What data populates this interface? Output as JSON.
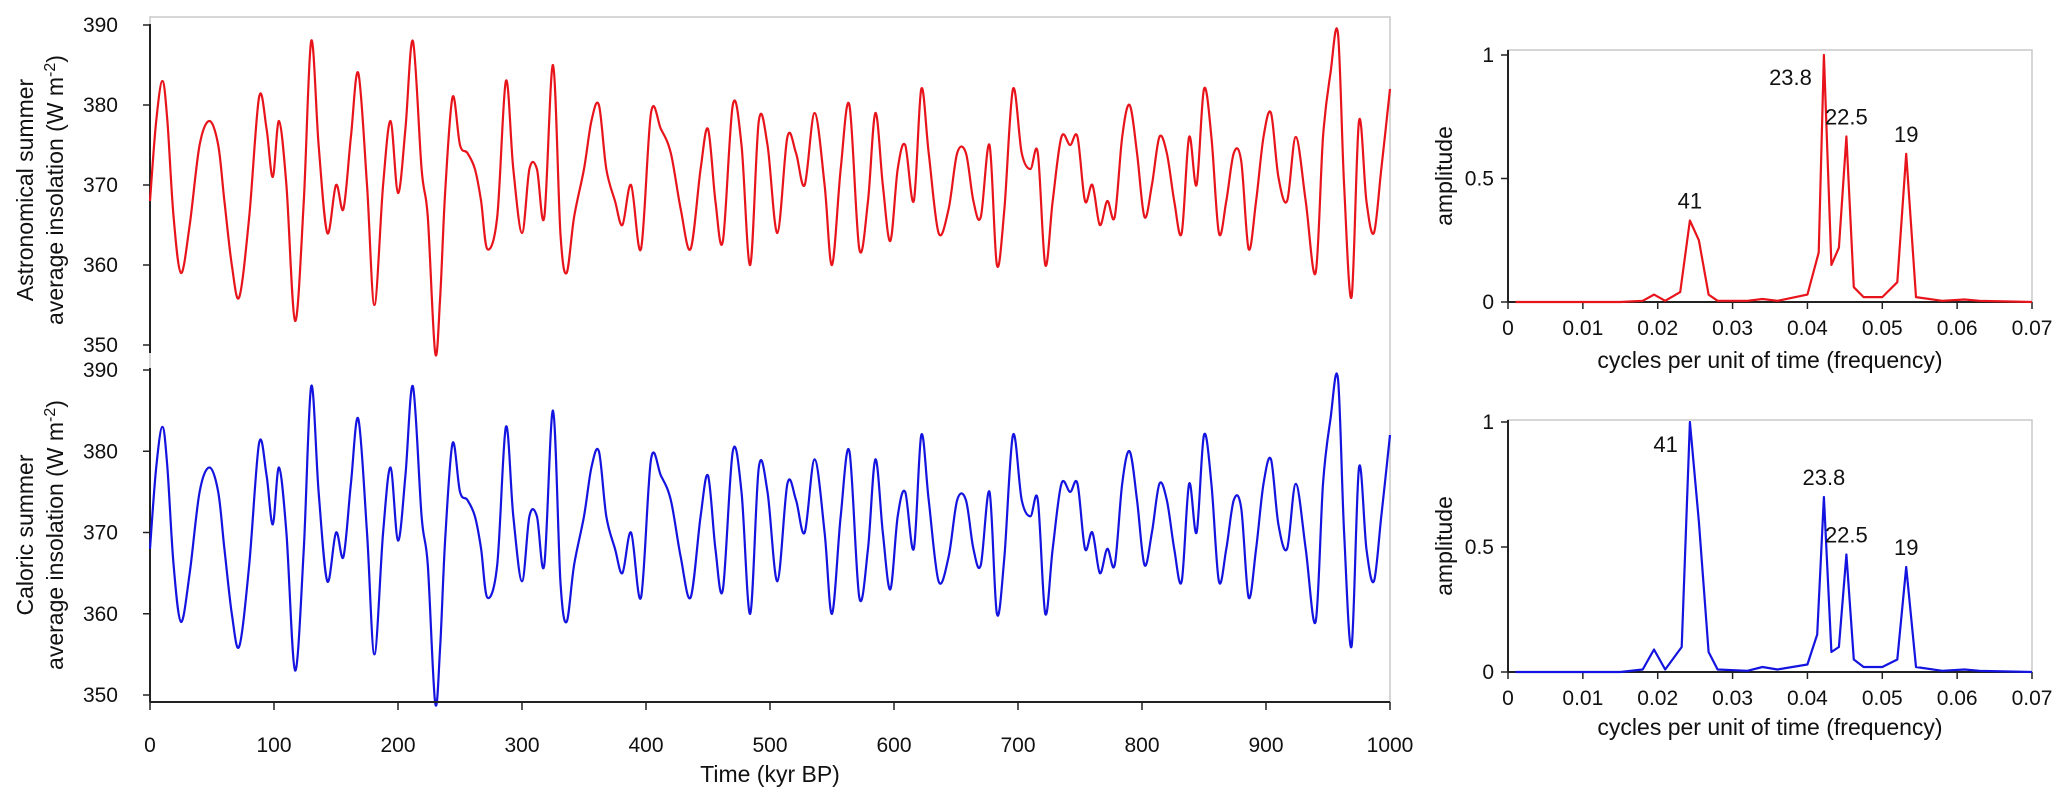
{
  "chart_data": [
    {
      "id": "astro-series",
      "type": "line",
      "title": "",
      "xlabel": "",
      "ylabel_line1": "Astronomical summer",
      "ylabel_line2": "average insolation (W m",
      "ylabel_sup": "-2",
      "ylabel_end": ")",
      "xlim": [
        0,
        1000
      ],
      "ylim": [
        350,
        390
      ],
      "yticks": [
        350,
        360,
        370,
        380,
        390
      ],
      "grid": false,
      "legend": "none",
      "color": "#e8141b",
      "series": [
        {
          "x": [
            0,
            5,
            10,
            14,
            19,
            25,
            32,
            40,
            48,
            55,
            60,
            66,
            72,
            80,
            88,
            94,
            99,
            104,
            110,
            117,
            124,
            130,
            136,
            143,
            150,
            156,
            162,
            168,
            175,
            181,
            188,
            194,
            200,
            206,
            212,
            219,
            224,
            230,
            234,
            238,
            244,
            250,
            256,
            262,
            267,
            272,
            280,
            287,
            293,
            300,
            306,
            312,
            318,
            325,
            331,
            336,
            342,
            350,
            356,
            362,
            368,
            375,
            381,
            388,
            396,
            404,
            412,
            420,
            428,
            436,
            444,
            450,
            456,
            462,
            470,
            477,
            484,
            491,
            498,
            506,
            514,
            521,
            528,
            536,
            544,
            550,
            557,
            564,
            572,
            579,
            585,
            591,
            597,
            603,
            609,
            616,
            622,
            628,
            636,
            644,
            651,
            658,
            664,
            670,
            677,
            683,
            689,
            696,
            703,
            710,
            716,
            722,
            728,
            735,
            742,
            748,
            754,
            760,
            766,
            772,
            778,
            784,
            790,
            796,
            802,
            808,
            814,
            820,
            826,
            832,
            838,
            844,
            850,
            856,
            862,
            868,
            874,
            880,
            886,
            892,
            898,
            904,
            910,
            917,
            924,
            932,
            940,
            946,
            952,
            958,
            963,
            969,
            975,
            981,
            987,
            993,
            1000
          ],
          "values": [
            368,
            378,
            383,
            378,
            366,
            359,
            365,
            375,
            378,
            375,
            368,
            360,
            356,
            366,
            381,
            377,
            371,
            378,
            370,
            353,
            368,
            388,
            375,
            364,
            370,
            367,
            376,
            384,
            370,
            355,
            370,
            378,
            369,
            377,
            388,
            372,
            366,
            349,
            356,
            369,
            381,
            375,
            374,
            372,
            368,
            362,
            366,
            383,
            372,
            364,
            372,
            372,
            366,
            385,
            364,
            359,
            366,
            372,
            378,
            380,
            372,
            368,
            365,
            370,
            362,
            379,
            377,
            374,
            367,
            362,
            372,
            377,
            368,
            363,
            380,
            375,
            360,
            378,
            375,
            364,
            376,
            374,
            370,
            379,
            370,
            360,
            372,
            380,
            362,
            368,
            379,
            370,
            363,
            372,
            375,
            368,
            382,
            374,
            364,
            367,
            374,
            374,
            368,
            366,
            375,
            360,
            367,
            382,
            374,
            372,
            374,
            360,
            368,
            376,
            375,
            376,
            368,
            370,
            365,
            368,
            366,
            376,
            380,
            374,
            366,
            370,
            376,
            374,
            368,
            364,
            376,
            370,
            382,
            376,
            364,
            368,
            374,
            373,
            362,
            368,
            376,
            379,
            371,
            368,
            376,
            368,
            359,
            376,
            384,
            389,
            370,
            356,
            378,
            368,
            364,
            372,
            382
          ]
        }
      ]
    },
    {
      "id": "caloric-series",
      "type": "line",
      "title": "",
      "xlabel": "Time (kyr BP)",
      "ylabel_line1": "Caloric summer",
      "ylabel_line2": "average insolation (W m",
      "ylabel_sup": "-2",
      "ylabel_end": ")",
      "xlim": [
        0,
        1000
      ],
      "ylim": [
        350,
        390
      ],
      "xticks": [
        0,
        100,
        200,
        300,
        400,
        500,
        600,
        700,
        800,
        900,
        1000
      ],
      "yticks": [
        350,
        360,
        370,
        380,
        390
      ],
      "grid": false,
      "legend": "none",
      "color": "#1414e0",
      "series": [
        {
          "x": [
            0,
            5,
            10,
            14,
            19,
            25,
            32,
            40,
            48,
            55,
            60,
            66,
            72,
            80,
            88,
            94,
            99,
            104,
            110,
            117,
            124,
            130,
            136,
            143,
            150,
            156,
            162,
            168,
            175,
            181,
            188,
            194,
            200,
            206,
            212,
            219,
            224,
            230,
            234,
            238,
            244,
            250,
            256,
            262,
            267,
            272,
            280,
            287,
            293,
            300,
            306,
            312,
            318,
            325,
            331,
            336,
            342,
            350,
            356,
            362,
            368,
            375,
            381,
            388,
            396,
            404,
            412,
            420,
            428,
            436,
            444,
            450,
            456,
            462,
            470,
            477,
            484,
            491,
            498,
            506,
            514,
            521,
            528,
            536,
            544,
            550,
            557,
            564,
            572,
            579,
            585,
            591,
            597,
            603,
            609,
            616,
            622,
            628,
            636,
            644,
            651,
            658,
            664,
            670,
            677,
            683,
            689,
            696,
            703,
            710,
            716,
            722,
            728,
            735,
            742,
            748,
            754,
            760,
            766,
            772,
            778,
            784,
            790,
            796,
            802,
            808,
            814,
            820,
            826,
            832,
            838,
            844,
            850,
            856,
            862,
            868,
            874,
            880,
            886,
            892,
            898,
            904,
            910,
            917,
            924,
            932,
            940,
            946,
            952,
            958,
            963,
            969,
            975,
            981,
            987,
            993,
            1000
          ],
          "values": [
            368,
            378,
            383,
            378,
            366,
            359,
            365,
            375,
            378,
            375,
            368,
            360,
            356,
            366,
            381,
            377,
            371,
            378,
            370,
            353,
            368,
            388,
            375,
            364,
            370,
            367,
            376,
            384,
            370,
            355,
            370,
            378,
            369,
            377,
            388,
            372,
            366,
            349,
            356,
            369,
            381,
            375,
            374,
            372,
            368,
            362,
            366,
            383,
            372,
            364,
            372,
            372,
            366,
            385,
            364,
            359,
            366,
            372,
            378,
            380,
            372,
            368,
            365,
            370,
            362,
            379,
            377,
            374,
            367,
            362,
            372,
            377,
            368,
            363,
            380,
            375,
            360,
            378,
            375,
            364,
            376,
            374,
            370,
            379,
            370,
            360,
            372,
            380,
            362,
            368,
            379,
            370,
            363,
            372,
            375,
            368,
            382,
            374,
            364,
            367,
            374,
            374,
            368,
            366,
            375,
            360,
            367,
            382,
            374,
            372,
            374,
            360,
            368,
            376,
            375,
            376,
            368,
            370,
            365,
            368,
            366,
            376,
            380,
            374,
            366,
            370,
            376,
            374,
            368,
            364,
            376,
            370,
            382,
            376,
            364,
            368,
            374,
            373,
            362,
            368,
            376,
            379,
            371,
            368,
            376,
            368,
            359,
            376,
            384,
            389,
            370,
            356,
            378,
            368,
            364,
            372,
            382
          ]
        }
      ]
    },
    {
      "id": "astro-spectrum",
      "type": "line",
      "title": "",
      "xlabel": "cycles per unit of time (frequency)",
      "ylabel": "amplitude",
      "xlim": [
        0,
        0.07
      ],
      "ylim": [
        0,
        1
      ],
      "xticks": [
        "0",
        "0.01",
        "0.02",
        "0.03",
        "0.04",
        "0.05",
        "0.06",
        "0.07"
      ],
      "yticks": [
        "0",
        "0.5",
        "1"
      ],
      "grid": false,
      "legend": "none",
      "color": "#e8141b",
      "series": [
        {
          "x": [
            0.001,
            0.015,
            0.018,
            0.0195,
            0.021,
            0.023,
            0.0243,
            0.0255,
            0.0268,
            0.028,
            0.032,
            0.034,
            0.036,
            0.04,
            0.0415,
            0.0422,
            0.0432,
            0.0442,
            0.0452,
            0.0462,
            0.0475,
            0.05,
            0.052,
            0.0532,
            0.0545,
            0.058,
            0.061,
            0.063,
            0.07
          ],
          "values": [
            0,
            0,
            0.005,
            0.03,
            0.005,
            0.04,
            0.33,
            0.25,
            0.03,
            0.005,
            0.005,
            0.012,
            0.005,
            0.03,
            0.2,
            1.0,
            0.15,
            0.22,
            0.67,
            0.06,
            0.02,
            0.02,
            0.08,
            0.6,
            0.02,
            0.005,
            0.01,
            0.005,
            0
          ]
        }
      ],
      "annotations": [
        {
          "label": "41",
          "x": 0.0243,
          "y": 0.33
        },
        {
          "label": "23.8",
          "x": 0.0422,
          "y": 1.0
        },
        {
          "label": "22.5",
          "x": 0.0452,
          "y": 0.67
        },
        {
          "label": "19",
          "x": 0.0532,
          "y": 0.6
        }
      ]
    },
    {
      "id": "caloric-spectrum",
      "type": "line",
      "title": "",
      "xlabel": "cycles per unit of time (frequency)",
      "ylabel": "amplitude",
      "xlim": [
        0,
        0.07
      ],
      "ylim": [
        0,
        1
      ],
      "xticks": [
        "0",
        "0.01",
        "0.02",
        "0.03",
        "0.04",
        "0.05",
        "0.06",
        "0.07"
      ],
      "yticks": [
        "0",
        "0.5",
        "1"
      ],
      "grid": false,
      "legend": "none",
      "color": "#1414e0",
      "series": [
        {
          "x": [
            0.001,
            0.015,
            0.018,
            0.0195,
            0.021,
            0.0232,
            0.0243,
            0.0255,
            0.0268,
            0.028,
            0.032,
            0.034,
            0.036,
            0.04,
            0.0413,
            0.0422,
            0.0432,
            0.0442,
            0.0452,
            0.0462,
            0.0475,
            0.05,
            0.052,
            0.0532,
            0.0545,
            0.058,
            0.061,
            0.063,
            0.07
          ],
          "values": [
            0,
            0,
            0.01,
            0.09,
            0.01,
            0.1,
            1.0,
            0.6,
            0.08,
            0.01,
            0.005,
            0.02,
            0.01,
            0.03,
            0.15,
            0.7,
            0.08,
            0.1,
            0.47,
            0.05,
            0.02,
            0.02,
            0.05,
            0.42,
            0.02,
            0.005,
            0.01,
            0.005,
            0
          ]
        }
      ],
      "annotations": [
        {
          "label": "41",
          "x": 0.0243,
          "y": 1.0
        },
        {
          "label": "23.8",
          "x": 0.0422,
          "y": 0.7
        },
        {
          "label": "22.5",
          "x": 0.0452,
          "y": 0.47
        },
        {
          "label": "19",
          "x": 0.0532,
          "y": 0.42
        }
      ]
    }
  ]
}
